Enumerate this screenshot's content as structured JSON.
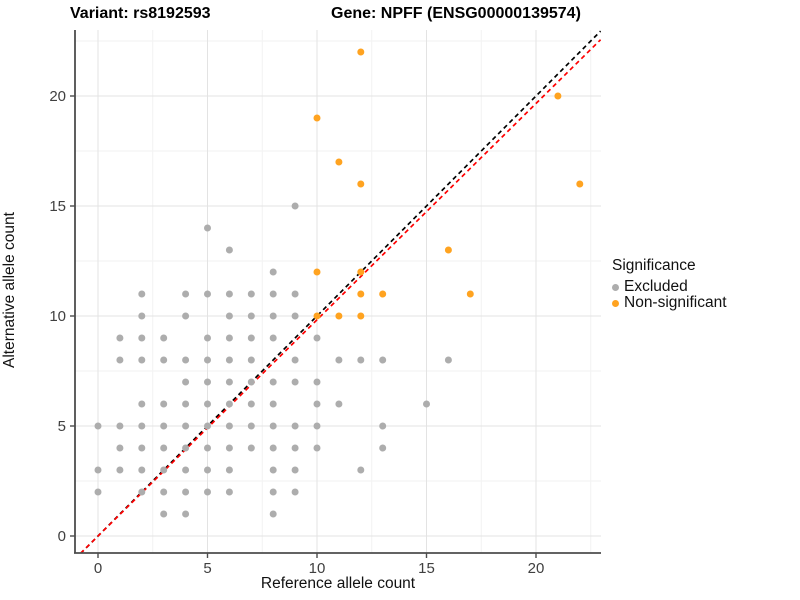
{
  "title": {
    "variant": "Variant: rs8192593",
    "gene": "Gene: NPFF (ENSG00000139574)"
  },
  "axes": {
    "x_label": "Reference allele count",
    "y_label": "Alternative allele count",
    "x_ticks": [
      "0",
      "5",
      "10",
      "15",
      "20"
    ],
    "y_ticks": [
      "0",
      "5",
      "10",
      "15",
      "20"
    ]
  },
  "legend": {
    "title": "Significance",
    "items": [
      {
        "label": "Excluded",
        "color": "#ADADAD"
      },
      {
        "label": "Non-significant",
        "color": "#FFA320"
      }
    ]
  },
  "colors": {
    "excluded": "#ADADAD",
    "non_significant": "#FFA320",
    "identity_line": "#000000",
    "fit_line": "#FF0000",
    "grid_major": "#E3E3E3",
    "grid_minor": "#F2F2F2",
    "axis_line": "#4D4D4D",
    "tick_label": "#404040"
  },
  "chart_data": {
    "type": "scatter",
    "title": "Variant: rs8192593  /  Gene: NPFF (ENSG00000139574)",
    "xlabel": "Reference allele count",
    "ylabel": "Alternative allele count",
    "xlim": [
      -1.05,
      22.95
    ],
    "ylim": [
      -0.8,
      23.0
    ],
    "x_major_ticks": [
      0,
      5,
      10,
      15,
      20
    ],
    "y_major_ticks": [
      0,
      5,
      10,
      15,
      20
    ],
    "x_minor_ticks": [
      2.5,
      7.5,
      12.5,
      17.5,
      22.5
    ],
    "y_minor_ticks": [
      2.5,
      7.5,
      12.5,
      17.5,
      22.5
    ],
    "grid": true,
    "legend_position": "right",
    "series": [
      {
        "name": "Excluded",
        "color": "#ADADAD",
        "points": [
          [
            9,
            15
          ],
          [
            5,
            14
          ],
          [
            6,
            13
          ],
          [
            8,
            12
          ],
          [
            2,
            11
          ],
          [
            4,
            11
          ],
          [
            5,
            11
          ],
          [
            6,
            11
          ],
          [
            7,
            11
          ],
          [
            8,
            11
          ],
          [
            9,
            11
          ],
          [
            2,
            10
          ],
          [
            4,
            10
          ],
          [
            6,
            10
          ],
          [
            7,
            10
          ],
          [
            8,
            10
          ],
          [
            9,
            10
          ],
          [
            1,
            9
          ],
          [
            2,
            9
          ],
          [
            3,
            9
          ],
          [
            5,
            9
          ],
          [
            6,
            9
          ],
          [
            7,
            9
          ],
          [
            8,
            9
          ],
          [
            10,
            9
          ],
          [
            1,
            8
          ],
          [
            2,
            8
          ],
          [
            3,
            8
          ],
          [
            4,
            8
          ],
          [
            5,
            8
          ],
          [
            6,
            8
          ],
          [
            7,
            8
          ],
          [
            9,
            8
          ],
          [
            11,
            8
          ],
          [
            12,
            8
          ],
          [
            13,
            8
          ],
          [
            16,
            8
          ],
          [
            4,
            7
          ],
          [
            5,
            7
          ],
          [
            6,
            7
          ],
          [
            7,
            7
          ],
          [
            8,
            7
          ],
          [
            9,
            7
          ],
          [
            10,
            7
          ],
          [
            2,
            6
          ],
          [
            3,
            6
          ],
          [
            4,
            6
          ],
          [
            5,
            6
          ],
          [
            6,
            6
          ],
          [
            7,
            6
          ],
          [
            8,
            6
          ],
          [
            10,
            6
          ],
          [
            11,
            6
          ],
          [
            15,
            6
          ],
          [
            0,
            5
          ],
          [
            1,
            5
          ],
          [
            2,
            5
          ],
          [
            3,
            5
          ],
          [
            4,
            5
          ],
          [
            5,
            5
          ],
          [
            6,
            5
          ],
          [
            7,
            5
          ],
          [
            8,
            5
          ],
          [
            9,
            5
          ],
          [
            10,
            5
          ],
          [
            13,
            5
          ],
          [
            1,
            4
          ],
          [
            2,
            4
          ],
          [
            3,
            4
          ],
          [
            4,
            4
          ],
          [
            5,
            4
          ],
          [
            6,
            4
          ],
          [
            7,
            4
          ],
          [
            8,
            4
          ],
          [
            9,
            4
          ],
          [
            10,
            4
          ],
          [
            13,
            4
          ],
          [
            0,
            3
          ],
          [
            1,
            3
          ],
          [
            2,
            3
          ],
          [
            3,
            3
          ],
          [
            4,
            3
          ],
          [
            5,
            3
          ],
          [
            6,
            3
          ],
          [
            8,
            3
          ],
          [
            9,
            3
          ],
          [
            12,
            3
          ],
          [
            0,
            2
          ],
          [
            2,
            2
          ],
          [
            3,
            2
          ],
          [
            4,
            2
          ],
          [
            5,
            2
          ],
          [
            6,
            2
          ],
          [
            8,
            2
          ],
          [
            9,
            2
          ],
          [
            3,
            1
          ],
          [
            4,
            1
          ],
          [
            8,
            1
          ]
        ]
      },
      {
        "name": "Non-significant",
        "color": "#FFA320",
        "points": [
          [
            12,
            22
          ],
          [
            21,
            20
          ],
          [
            10,
            19
          ],
          [
            11,
            17
          ],
          [
            12,
            16
          ],
          [
            22,
            16
          ],
          [
            16,
            13
          ],
          [
            10,
            12
          ],
          [
            12,
            12
          ],
          [
            12,
            11
          ],
          [
            13,
            11
          ],
          [
            17,
            11
          ],
          [
            10,
            10
          ],
          [
            11,
            10
          ],
          [
            12,
            10
          ]
        ]
      }
    ],
    "lines": [
      {
        "name": "identity",
        "color": "#000000",
        "dashed": true,
        "from": [
          -0.8,
          -0.8
        ],
        "to": [
          22.95,
          22.95
        ]
      },
      {
        "name": "fit",
        "color": "#FF0000",
        "dashed": true,
        "from": [
          -0.8,
          -0.79
        ],
        "to": [
          22.95,
          22.56
        ]
      }
    ]
  }
}
